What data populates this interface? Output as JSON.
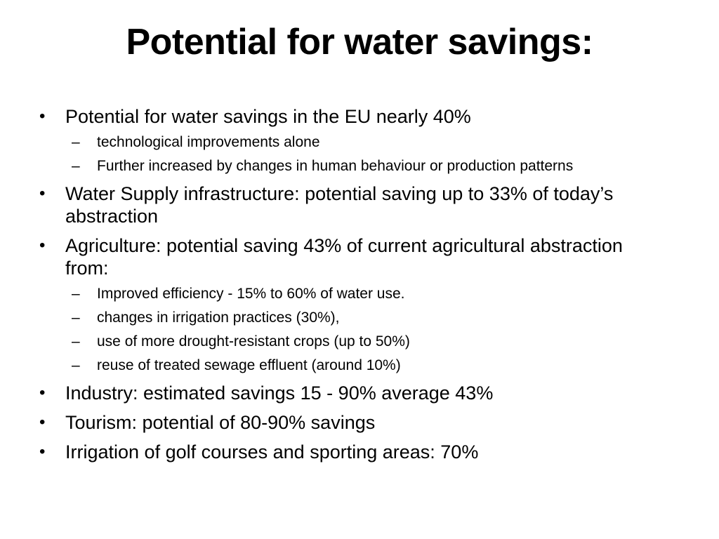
{
  "slide": {
    "title": "Potential for water savings:",
    "bullets": [
      {
        "text": "Potential for water savings in the EU nearly 40%",
        "subitems": [
          "technological improvements alone",
          "Further increased by changes in human behaviour or production patterns"
        ]
      },
      {
        "text": "Water Supply infrastructure: potential saving up to 33% of today’s abstraction",
        "subitems": []
      },
      {
        "text": "Agriculture: potential saving 43% of current agricultural abstraction from:",
        "subitems": [
          "Improved efficiency - 15% to 60% of water use.",
          "changes in irrigation practices (30%),",
          "use of more drought-resistant crops (up to 50%)",
          "reuse of treated sewage effluent (around 10%)"
        ]
      },
      {
        "text": "Industry:  estimated savings 15 - 90% average 43%",
        "subitems": []
      },
      {
        "text": "Tourism: potential of 80-90% savings",
        "subitems": []
      },
      {
        "text": "Irrigation of golf courses and sporting areas: 70%",
        "subitems": []
      }
    ],
    "bullet_glyph": "•",
    "sub_bullet_glyph": "–"
  }
}
